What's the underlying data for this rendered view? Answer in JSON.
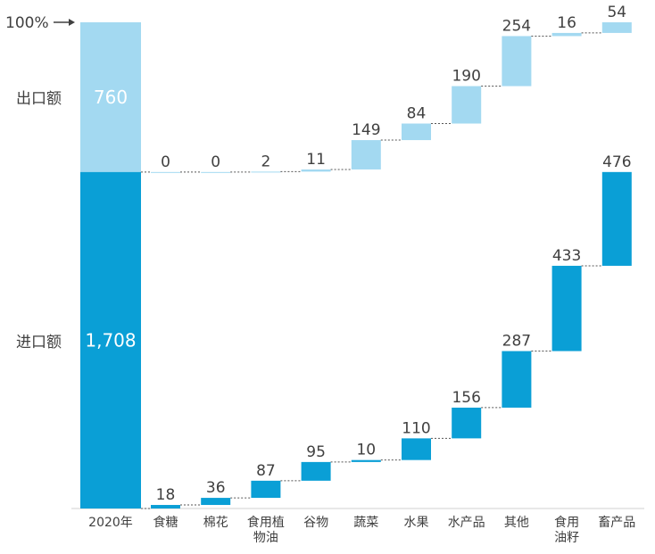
{
  "chart_data": {
    "type": "bar",
    "subtype": "marimekko-waterfall",
    "top_marker": "100%",
    "baseline_label": "2020年",
    "categories": [
      {
        "label": [
          "食糖"
        ]
      },
      {
        "label": [
          "棉花"
        ]
      },
      {
        "label": [
          "食用植",
          "物油"
        ]
      },
      {
        "label": [
          "谷物"
        ]
      },
      {
        "label": [
          "蔬菜"
        ]
      },
      {
        "label": [
          "水果"
        ]
      },
      {
        "label": [
          "水产品"
        ]
      },
      {
        "label": [
          "其他"
        ]
      },
      {
        "label": [
          "食用",
          "油籽"
        ]
      },
      {
        "label": [
          "畜产品"
        ]
      }
    ],
    "series": [
      {
        "name": "出口额",
        "total": 760,
        "total_label": "760",
        "color": "#a3d9f1",
        "values": [
          0,
          0,
          2,
          11,
          149,
          84,
          190,
          254,
          16,
          54
        ]
      },
      {
        "name": "进口额",
        "total": 1708,
        "total_label": "1,708",
        "color": "#0a9fd6",
        "values": [
          18,
          36,
          87,
          95,
          10,
          110,
          156,
          287,
          433,
          476
        ]
      }
    ],
    "colors": {
      "connector": "#555555",
      "text": "#404040",
      "axis": "#d0d0d0"
    }
  }
}
